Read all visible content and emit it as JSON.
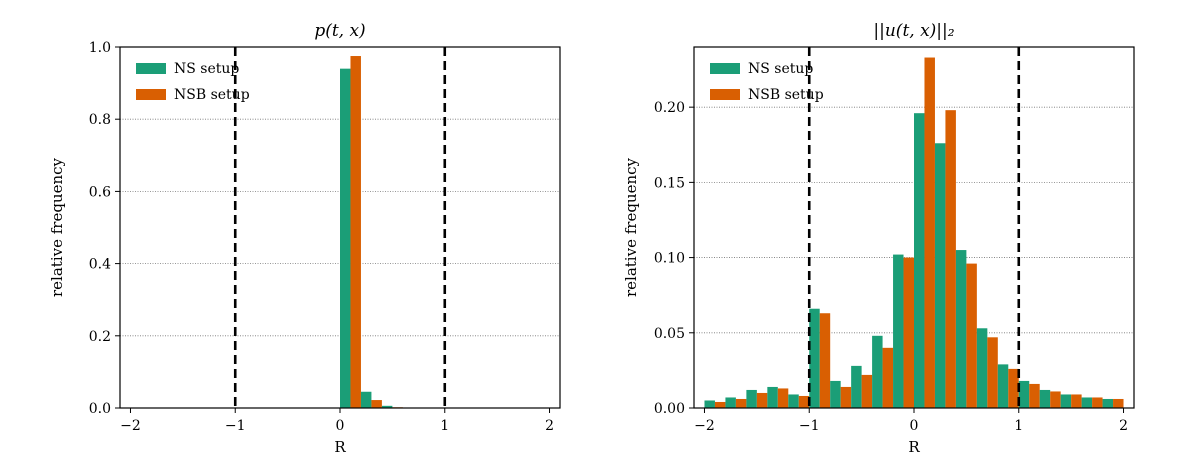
{
  "chart_data": [
    {
      "type": "bar",
      "title": "p(t, x)",
      "xlabel": "R",
      "ylabel": "relative frequency",
      "xlim": [
        -2.1,
        2.1
      ],
      "ylim": [
        0,
        1.0
      ],
      "xticks": [
        -2,
        -1,
        0,
        1,
        2
      ],
      "xtick_labels": [
        "−2",
        "−1",
        "0",
        "1",
        "2"
      ],
      "yticks": [
        0.0,
        0.2,
        0.4,
        0.6,
        0.8,
        1.0
      ],
      "ytick_labels": [
        "0.0",
        "0.2",
        "0.4",
        "0.6",
        "0.8",
        "1.0"
      ],
      "grid": "horizontal dotted",
      "legend": "top-left",
      "reference_lines_x": [
        -1,
        1
      ],
      "bin_centers": [
        0.1,
        0.3,
        0.5
      ],
      "series": [
        {
          "name": "NS setup",
          "color": "#1b9e77",
          "values": [
            0.94,
            0.045,
            0.006
          ]
        },
        {
          "name": "NSB setup",
          "color": "#d95f02",
          "values": [
            0.975,
            0.022,
            0.002
          ]
        }
      ]
    },
    {
      "type": "bar",
      "title": "||u(t, x)||₂",
      "xlabel": "R",
      "ylabel": "relative frequency",
      "xlim": [
        -2.1,
        2.1
      ],
      "ylim": [
        0,
        0.24
      ],
      "xticks": [
        -2,
        -1,
        0,
        1,
        2
      ],
      "xtick_labels": [
        "−2",
        "−1",
        "0",
        "1",
        "2"
      ],
      "yticks": [
        0.0,
        0.05,
        0.1,
        0.15,
        0.2
      ],
      "ytick_labels": [
        "0.00",
        "0.05",
        "0.10",
        "0.15",
        "0.20"
      ],
      "grid": "horizontal dotted",
      "legend": "top-left",
      "reference_lines_x": [
        -1,
        1
      ],
      "bin_centers": [
        -1.9,
        -1.7,
        -1.5,
        -1.3,
        -1.1,
        -0.9,
        -0.7,
        -0.5,
        -0.3,
        -0.1,
        0.1,
        0.3,
        0.5,
        0.7,
        0.9,
        1.1,
        1.3,
        1.5,
        1.7,
        1.9
      ],
      "series": [
        {
          "name": "NS setup",
          "color": "#1b9e77",
          "values": [
            0.005,
            0.007,
            0.012,
            0.014,
            0.009,
            0.066,
            0.018,
            0.028,
            0.048,
            0.102,
            0.196,
            0.176,
            0.105,
            0.053,
            0.029,
            0.018,
            0.012,
            0.009,
            0.007,
            0.006
          ]
        },
        {
          "name": "NSB setup",
          "color": "#d95f02",
          "values": [
            0.004,
            0.006,
            0.01,
            0.013,
            0.008,
            0.063,
            0.014,
            0.022,
            0.04,
            0.1,
            0.233,
            0.198,
            0.096,
            0.047,
            0.026,
            0.016,
            0.011,
            0.009,
            0.007,
            0.006
          ]
        }
      ]
    }
  ]
}
